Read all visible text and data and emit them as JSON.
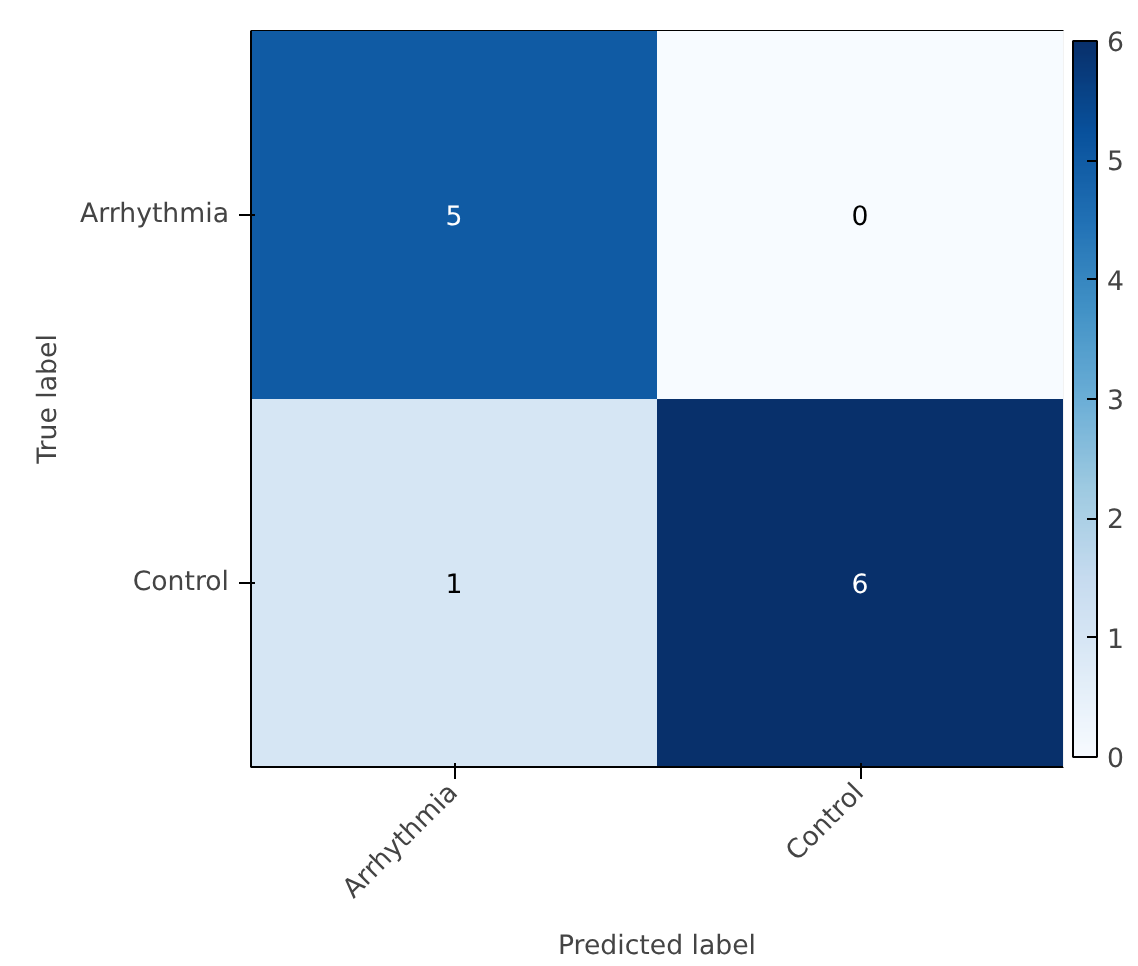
{
  "chart_data": {
    "type": "heatmap",
    "xlabel": "Predicted label",
    "ylabel": "True label",
    "categories": [
      "Arrhythmia",
      "Control"
    ],
    "y_categories": [
      "Arrhythmia",
      "Control"
    ],
    "cells": [
      [
        5,
        0
      ],
      [
        1,
        6
      ]
    ],
    "clim": [
      0,
      6
    ],
    "cticks": [
      0,
      1,
      2,
      3,
      4,
      5,
      6
    ],
    "data_labels": true
  }
}
